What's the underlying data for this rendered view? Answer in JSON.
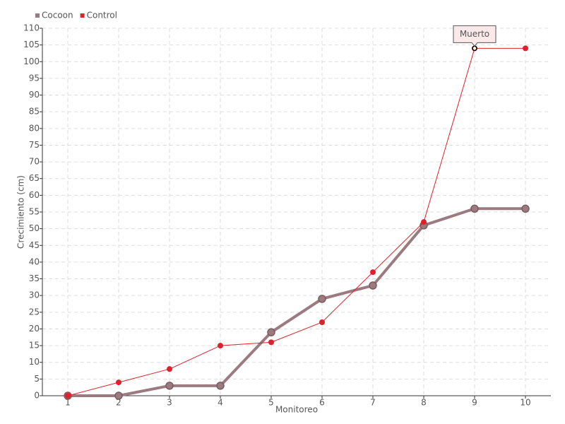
{
  "chart_data": {
    "type": "line",
    "x_label": "Monitoreo",
    "y_label": "Crecimiento (cm)",
    "x": [
      1,
      2,
      3,
      4,
      5,
      6,
      7,
      8,
      9,
      10
    ],
    "series": [
      {
        "name": "Cocoon",
        "color": "#9b7b80",
        "values": [
          0,
          0,
          3,
          3,
          19,
          29,
          33,
          51,
          56,
          56
        ]
      },
      {
        "name": "Control",
        "color": "#e0202a",
        "values": [
          0,
          4,
          8,
          15,
          16,
          22,
          37,
          52,
          104,
          104
        ]
      }
    ],
    "xlim": [
      0.5,
      10.5
    ],
    "xticks": [
      1,
      2,
      3,
      4,
      5,
      6,
      7,
      8,
      9,
      10
    ],
    "ylim": [
      0,
      110
    ],
    "yticks": [
      0,
      5,
      10,
      15,
      20,
      25,
      30,
      35,
      40,
      45,
      50,
      55,
      60,
      65,
      70,
      75,
      80,
      85,
      90,
      95,
      100,
      105,
      110
    ],
    "grid": true,
    "legend": "top-left",
    "annotations": [
      {
        "text": "Muerto",
        "x": 9,
        "y": 104
      }
    ]
  }
}
